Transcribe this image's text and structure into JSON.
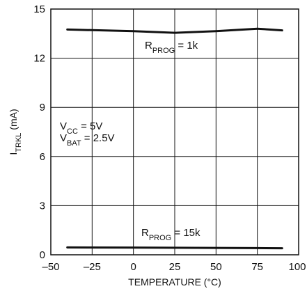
{
  "chart_data": {
    "type": "line",
    "xlabel": "TEMPERATURE (°C)",
    "ylabel": "I",
    "ylabel_sub": "TRKL",
    "ylabel_unit": " (mA)",
    "xlim": [
      -50,
      100
    ],
    "ylim": [
      0,
      15
    ],
    "xticks": [
      -50,
      -25,
      0,
      25,
      50,
      75,
      100
    ],
    "yticks": [
      0,
      3,
      6,
      9,
      12,
      15
    ],
    "xtick_labels": [
      "–50",
      "–25",
      "0",
      "25",
      "50",
      "75",
      "100"
    ],
    "ytick_labels": [
      "0",
      "3",
      "6",
      "9",
      "12",
      "15"
    ],
    "grid": true,
    "series": [
      {
        "name": "R_PROG = 1k",
        "x": [
          -40,
          0,
          25,
          50,
          75,
          90
        ],
        "y": [
          13.75,
          13.65,
          13.55,
          13.65,
          13.8,
          13.7
        ]
      },
      {
        "name": "R_PROG = 15k",
        "x": [
          -40,
          0,
          25,
          50,
          75,
          90
        ],
        "y": [
          0.45,
          0.44,
          0.43,
          0.42,
          0.41,
          0.4
        ]
      }
    ],
    "annotations": {
      "rprog_1k": {
        "main": "R",
        "sub": "PROG",
        "rest": " = 1k"
      },
      "rprog_15k": {
        "main": "R",
        "sub": "PROG",
        "rest": " = 15k"
      },
      "vcc": {
        "main": "V",
        "sub": "CC",
        "rest": " = 5V"
      },
      "vbat": {
        "main": "V",
        "sub": "BAT",
        "rest": " = 2.5V"
      }
    }
  }
}
